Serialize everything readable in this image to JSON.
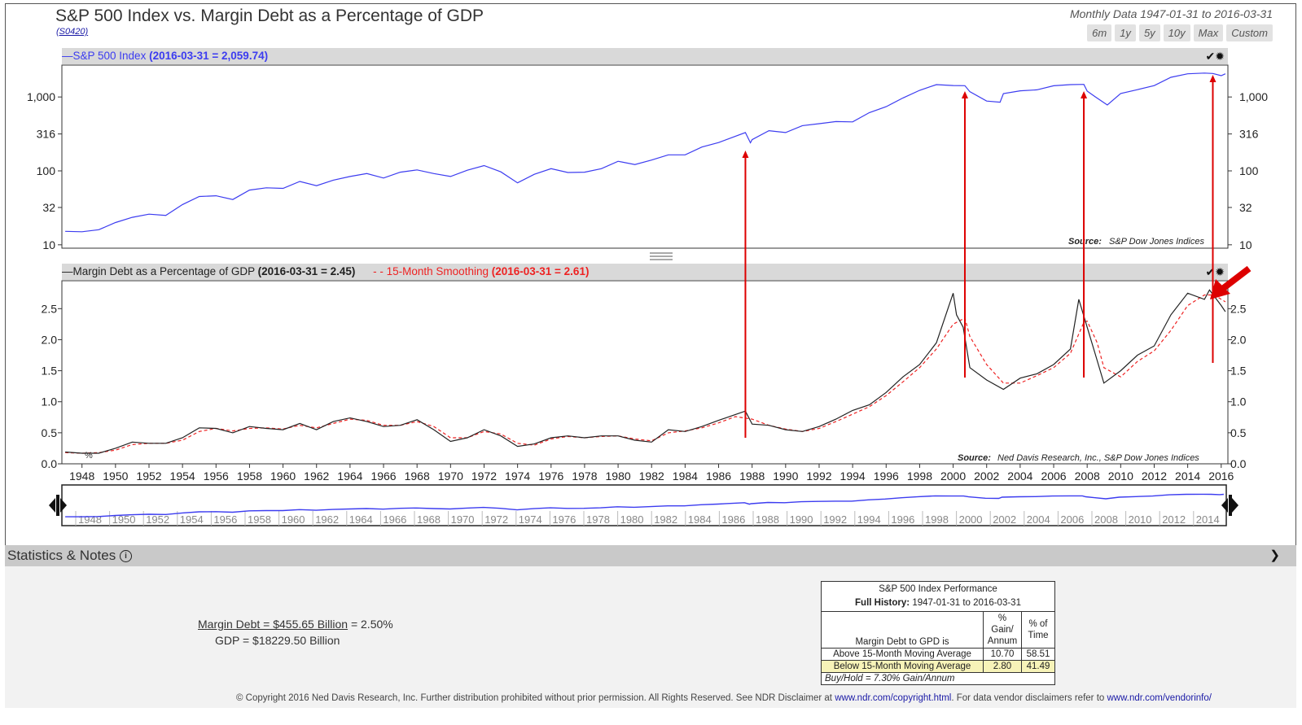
{
  "header": {
    "title": "S&P 500 Index vs. Margin Debt as a Percentage of GDP",
    "code": "(S0420)",
    "subtitle": "Monthly Data 1947-01-31 to 2016-03-31",
    "range_buttons": [
      "6m",
      "1y",
      "5y",
      "10y",
      "Max",
      "Custom"
    ]
  },
  "colors": {
    "sp500": "#3c3cf0",
    "margin": "#222222",
    "smooth": "#ee2222",
    "annotation": "#dd0000"
  },
  "top_panel": {
    "legend_series": "S&P 500 Index",
    "legend_value": "(2016-03-31 = 2,059.74)",
    "source": "S&P Dow Jones Indices",
    "source_label": "Source:"
  },
  "bottom_panel": {
    "legend_series1": "Margin Debt as a Percentage of GDP",
    "legend_value1": "(2016-03-31 = 2.45)",
    "legend_series2": "15-Month Smoothing",
    "legend_value2": "(2016-03-31 = 2.61)",
    "source": "Ned Davis Research, Inc., S&P Dow Jones Indices",
    "source_label": "Source:",
    "unit": "%"
  },
  "chart_data": [
    {
      "type": "line",
      "scale": "log",
      "y_ticks": [
        10,
        32,
        100,
        316,
        1000
      ],
      "y_tick_labels": [
        "10",
        "32",
        "100",
        "316",
        "1,000"
      ],
      "ylim": [
        9,
        2700
      ],
      "xlim": [
        1946.8,
        2016.4
      ],
      "series": [
        {
          "name": "S&P 500 Index",
          "x": [
            1947,
            1948,
            1949,
            1950,
            1951,
            1952,
            1953,
            1954,
            1955,
            1956,
            1957,
            1958,
            1959,
            1960,
            1961,
            1962,
            1963,
            1964,
            1965,
            1966,
            1967,
            1968,
            1969,
            1970,
            1971,
            1972,
            1973,
            1974,
            1975,
            1976,
            1977,
            1978,
            1979,
            1980,
            1981,
            1982,
            1983,
            1984,
            1985,
            1986,
            1987.6,
            1987.9,
            1988,
            1989,
            1990,
            1991,
            1992,
            1993,
            1994,
            1995,
            1996,
            1997,
            1998,
            1999,
            2000,
            2000.7,
            2001,
            2002,
            2002.8,
            2003,
            2004,
            2005,
            2006,
            2007,
            2007.8,
            2008,
            2008.5,
            2009.2,
            2010,
            2011,
            2012,
            2013,
            2014,
            2015,
            2015.5,
            2016,
            2016.25
          ],
          "values": [
            15.2,
            15,
            16,
            20,
            23.5,
            26,
            25,
            35,
            45,
            46,
            41,
            55,
            59,
            58,
            72,
            63,
            75,
            84,
            92,
            80,
            96,
            103,
            92,
            84,
            102,
            118,
            97,
            69,
            90,
            107,
            95,
            96,
            107,
            135,
            122,
            140,
            165,
            165,
            210,
            242,
            330,
            240,
            265,
            350,
            330,
            410,
            435,
            465,
            460,
            615,
            740,
            970,
            1230,
            1470,
            1430,
            1420,
            1180,
            880,
            850,
            1111,
            1211,
            1248,
            1418,
            1468,
            1480,
            1200,
            1000,
            780,
            1115,
            1257,
            1426,
            1848,
            2058,
            2104,
            2080,
            1940,
            2059.74
          ]
        }
      ]
    },
    {
      "type": "line",
      "y_ticks": [
        0.0,
        0.5,
        1.0,
        1.5,
        2.0,
        2.5
      ],
      "y_tick_labels": [
        "0.0",
        "0.5",
        "1.0",
        "1.5",
        "2.0",
        "2.5"
      ],
      "ylim": [
        0,
        2.95
      ],
      "xlim": [
        1946.8,
        2016.4
      ],
      "x_ticks": [
        1948,
        1950,
        1952,
        1954,
        1956,
        1958,
        1960,
        1962,
        1964,
        1966,
        1968,
        1970,
        1972,
        1974,
        1976,
        1978,
        1980,
        1982,
        1984,
        1986,
        1988,
        1990,
        1992,
        1994,
        1996,
        1998,
        2000,
        2002,
        2004,
        2006,
        2008,
        2010,
        2012,
        2014,
        2016
      ],
      "series": [
        {
          "name": "Margin Debt as a Percentage of GDP",
          "x": [
            1947,
            1948,
            1949,
            1950,
            1951,
            1952,
            1953,
            1954,
            1955,
            1956,
            1957,
            1958,
            1959,
            1960,
            1961,
            1962,
            1963,
            1964,
            1965,
            1966,
            1967,
            1968,
            1969,
            1970,
            1971,
            1972,
            1973,
            1974,
            1975,
            1976,
            1977,
            1978,
            1979,
            1980,
            1981,
            1982,
            1983,
            1984,
            1985,
            1986,
            1987.6,
            1988,
            1989,
            1990,
            1991,
            1992,
            1993,
            1994,
            1995,
            1996,
            1997,
            1998,
            1999,
            2000,
            2000.2,
            2000.6,
            2001,
            2002,
            2003,
            2004,
            2005,
            2006,
            2007,
            2007.5,
            2008,
            2008.5,
            2009,
            2010,
            2011,
            2012,
            2013,
            2014,
            2015,
            2015.3,
            2016,
            2016.25
          ],
          "values": [
            0.19,
            0.17,
            0.17,
            0.25,
            0.35,
            0.33,
            0.33,
            0.42,
            0.58,
            0.57,
            0.5,
            0.6,
            0.57,
            0.55,
            0.65,
            0.55,
            0.68,
            0.74,
            0.68,
            0.6,
            0.62,
            0.71,
            0.55,
            0.36,
            0.42,
            0.55,
            0.45,
            0.28,
            0.32,
            0.42,
            0.45,
            0.42,
            0.45,
            0.45,
            0.38,
            0.35,
            0.55,
            0.52,
            0.6,
            0.7,
            0.85,
            0.64,
            0.62,
            0.55,
            0.52,
            0.6,
            0.72,
            0.86,
            0.95,
            1.15,
            1.4,
            1.6,
            1.95,
            2.75,
            2.4,
            2.2,
            1.55,
            1.35,
            1.2,
            1.38,
            1.45,
            1.6,
            1.85,
            2.65,
            2.2,
            1.75,
            1.3,
            1.5,
            1.75,
            1.9,
            2.4,
            2.75,
            2.65,
            2.8,
            2.55,
            2.45
          ]
        },
        {
          "name": "15-Month Smoothing",
          "x": [
            1947,
            1948,
            1949,
            1950,
            1951,
            1952,
            1953,
            1954,
            1955,
            1956,
            1957,
            1958,
            1959,
            1960,
            1961,
            1962,
            1963,
            1964,
            1965,
            1966,
            1967,
            1968,
            1969,
            1970,
            1971,
            1972,
            1973,
            1974,
            1975,
            1976,
            1977,
            1978,
            1979,
            1980,
            1981,
            1982,
            1983,
            1984,
            1985,
            1986,
            1987,
            1988,
            1989,
            1990,
            1991,
            1992,
            1993,
            1994,
            1995,
            1996,
            1997,
            1998,
            1999,
            2000,
            2000.7,
            2001,
            2002,
            2003,
            2004,
            2005,
            2006,
            2007,
            2007.8,
            2008,
            2008.6,
            2009,
            2010,
            2011,
            2012,
            2013,
            2014,
            2015,
            2015.6,
            2016,
            2016.25
          ],
          "values": [
            0.18,
            0.17,
            0.18,
            0.22,
            0.31,
            0.33,
            0.33,
            0.38,
            0.52,
            0.57,
            0.53,
            0.57,
            0.58,
            0.56,
            0.62,
            0.58,
            0.65,
            0.72,
            0.7,
            0.62,
            0.62,
            0.68,
            0.6,
            0.42,
            0.42,
            0.52,
            0.48,
            0.33,
            0.3,
            0.4,
            0.44,
            0.42,
            0.44,
            0.45,
            0.4,
            0.37,
            0.5,
            0.53,
            0.58,
            0.66,
            0.76,
            0.72,
            0.62,
            0.56,
            0.52,
            0.57,
            0.68,
            0.8,
            0.92,
            1.1,
            1.32,
            1.55,
            1.85,
            2.25,
            2.35,
            2.05,
            1.6,
            1.3,
            1.3,
            1.42,
            1.55,
            1.78,
            2.28,
            2.3,
            1.95,
            1.55,
            1.4,
            1.65,
            1.82,
            2.15,
            2.55,
            2.72,
            2.72,
            2.65,
            2.61
          ]
        }
      ]
    }
  ],
  "navigator": {
    "year_labels": [
      "1948",
      "1950",
      "1952",
      "1954",
      "1956",
      "1958",
      "1960",
      "1962",
      "1964",
      "1966",
      "1968",
      "1970",
      "1972",
      "1974",
      "1976",
      "1978",
      "1980",
      "1982",
      "1984",
      "1986",
      "1988",
      "1990",
      "1992",
      "1994",
      "1996",
      "1998",
      "2000",
      "2002",
      "2004",
      "2006",
      "2008",
      "2010",
      "2012",
      "2014"
    ]
  },
  "annotations": {
    "arrow_years": [
      1987.6,
      2000.7,
      2007.8,
      2015.5
    ]
  },
  "stats": {
    "bar_title": "Statistics & Notes",
    "margin_debt_label": "Margin Debt = $455.65 Billion",
    "margin_debt_pct": " = 2.50%",
    "gdp_label": "GDP = $18229.50 Billion",
    "table": {
      "title": "S&P 500 Index Performance",
      "history_label": "Full History:",
      "history_range": "1947-01-31 to 2016-03-31",
      "row_header": "Margin Debt to GPD is",
      "col1_line1": "% Gain/",
      "col1_line2": "Annum",
      "col2_line1": "% of",
      "col2_line2": "Time",
      "rows": [
        {
          "label": "Above 15-Month Moving Average",
          "gain": "10.70",
          "time": "58.51",
          "highlight": "#ffffff"
        },
        {
          "label": "Below 15-Month Moving Average",
          "gain": "2.80",
          "time": "41.49",
          "highlight": "#f7f3b8"
        }
      ],
      "footer": "Buy/Hold = 7.30% Gain/Annum"
    }
  },
  "footer": {
    "copyright": "© Copyright 2016 Ned Davis Research, Inc. Further distribution prohibited without prior permission. All Rights Reserved. See NDR Disclaimer at ",
    "link1": "www.ndr.com/copyright.html",
    "mid": ". For data vendor disclaimers refer to ",
    "link2": "www.ndr.com/vendorinfo/"
  }
}
